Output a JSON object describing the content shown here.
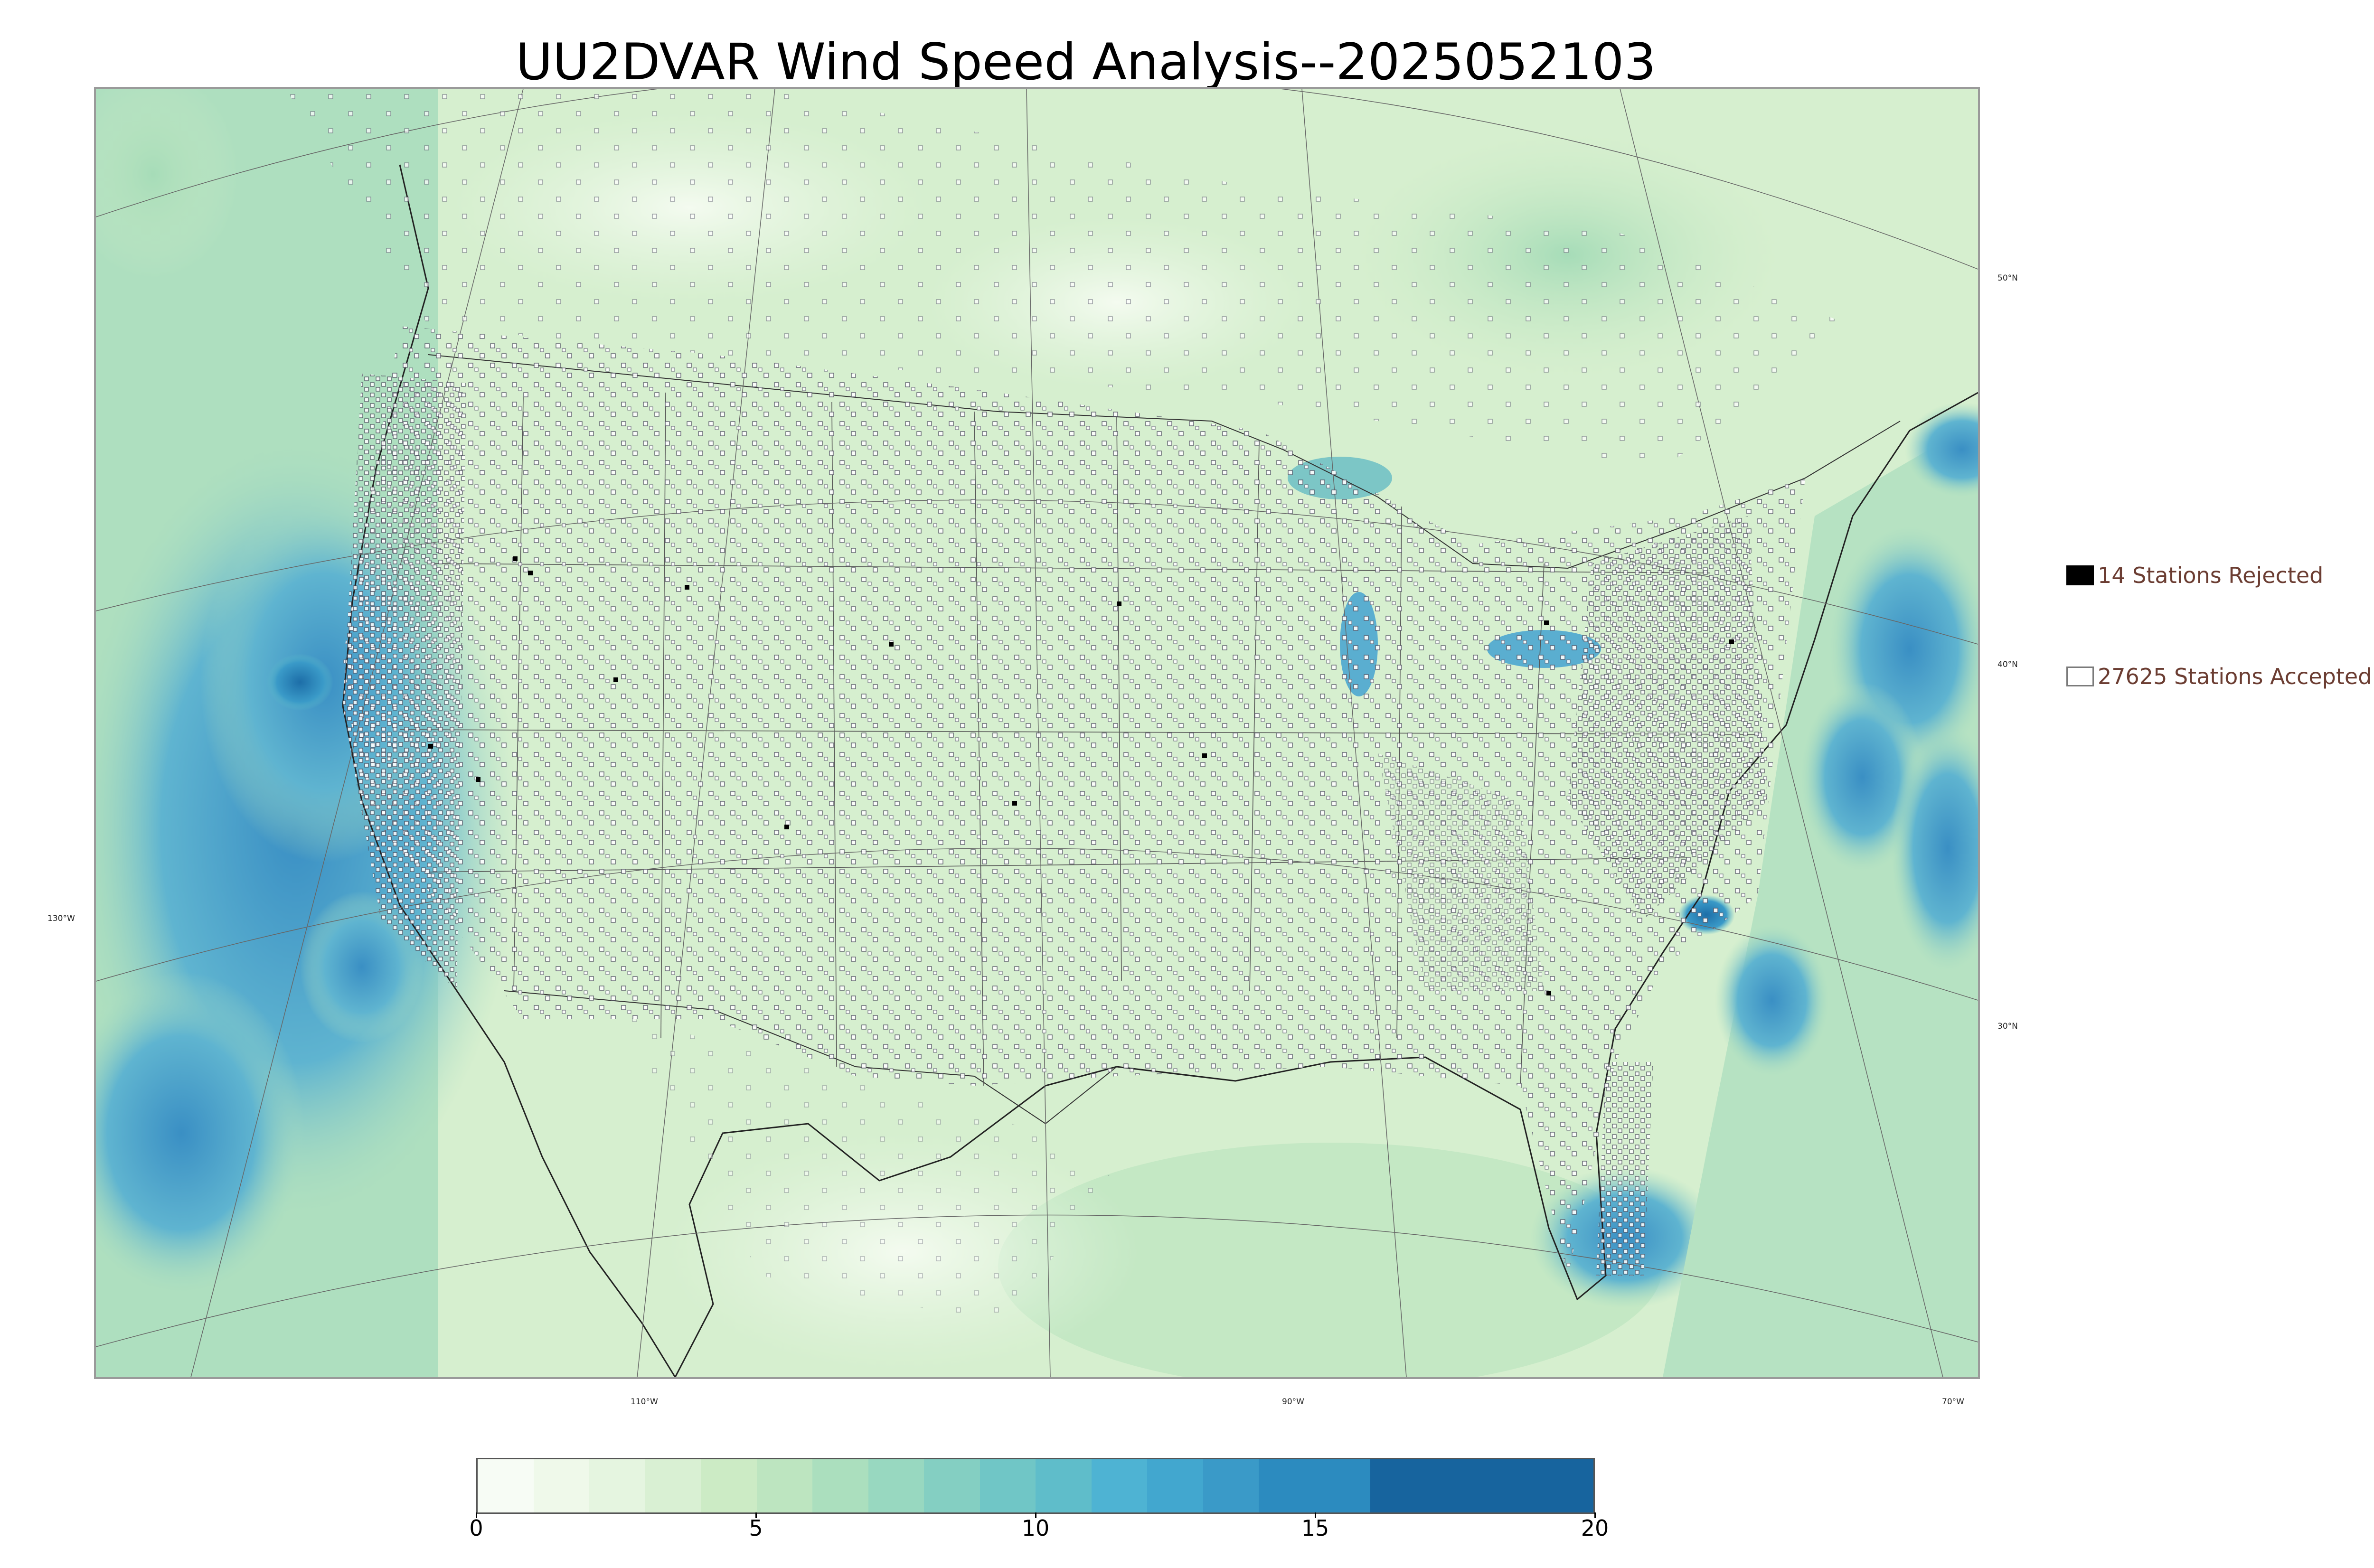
{
  "title": "UU2DVAR Wind Speed Analysis--2025052103",
  "legend": {
    "rejected": {
      "label": "14 Stations Rejected",
      "count": 14
    },
    "accepted": {
      "label": "27625 Stations Accepted",
      "count": 27625
    }
  },
  "latitude_labels": [
    "50°N",
    "40°N",
    "30°N"
  ],
  "longitude_labels": [
    "130°W",
    "110°W",
    "90°W",
    "70°W"
  ],
  "colorbar": {
    "ticks": [
      "0",
      "5",
      "10",
      "15",
      "20"
    ],
    "range": [
      0,
      20
    ],
    "bins": [
      {
        "from": 0,
        "to": 1,
        "color": "#f7fcf5"
      },
      {
        "from": 1,
        "to": 2,
        "color": "#eff9ea"
      },
      {
        "from": 2,
        "to": 3,
        "color": "#e5f5e0"
      },
      {
        "from": 3,
        "to": 4,
        "color": "#d9f0d3"
      },
      {
        "from": 4,
        "to": 5,
        "color": "#ccebc5"
      },
      {
        "from": 5,
        "to": 6,
        "color": "#bde5c0"
      },
      {
        "from": 6,
        "to": 7,
        "color": "#abdfbe"
      },
      {
        "from": 7,
        "to": 8,
        "color": "#98d8c0"
      },
      {
        "from": 8,
        "to": 9,
        "color": "#84cfc2"
      },
      {
        "from": 9,
        "to": 10,
        "color": "#70c6c6"
      },
      {
        "from": 10,
        "to": 11,
        "color": "#5fbdca"
      },
      {
        "from": 11,
        "to": 12,
        "color": "#4eb3d3"
      },
      {
        "from": 12,
        "to": 13,
        "color": "#42a7cf"
      },
      {
        "from": 13,
        "to": 14,
        "color": "#3a9ac8"
      },
      {
        "from": 14,
        "to": 16,
        "color": "#2c8bbf"
      },
      {
        "from": 16,
        "to": 20,
        "color": "#17649e"
      }
    ]
  },
  "colors": {
    "land_green": "#cdebc6",
    "ocean_green": "#b9e3c1",
    "high_wind_blue": "#2b8cbe",
    "legend_text": "#6b3d32"
  }
}
